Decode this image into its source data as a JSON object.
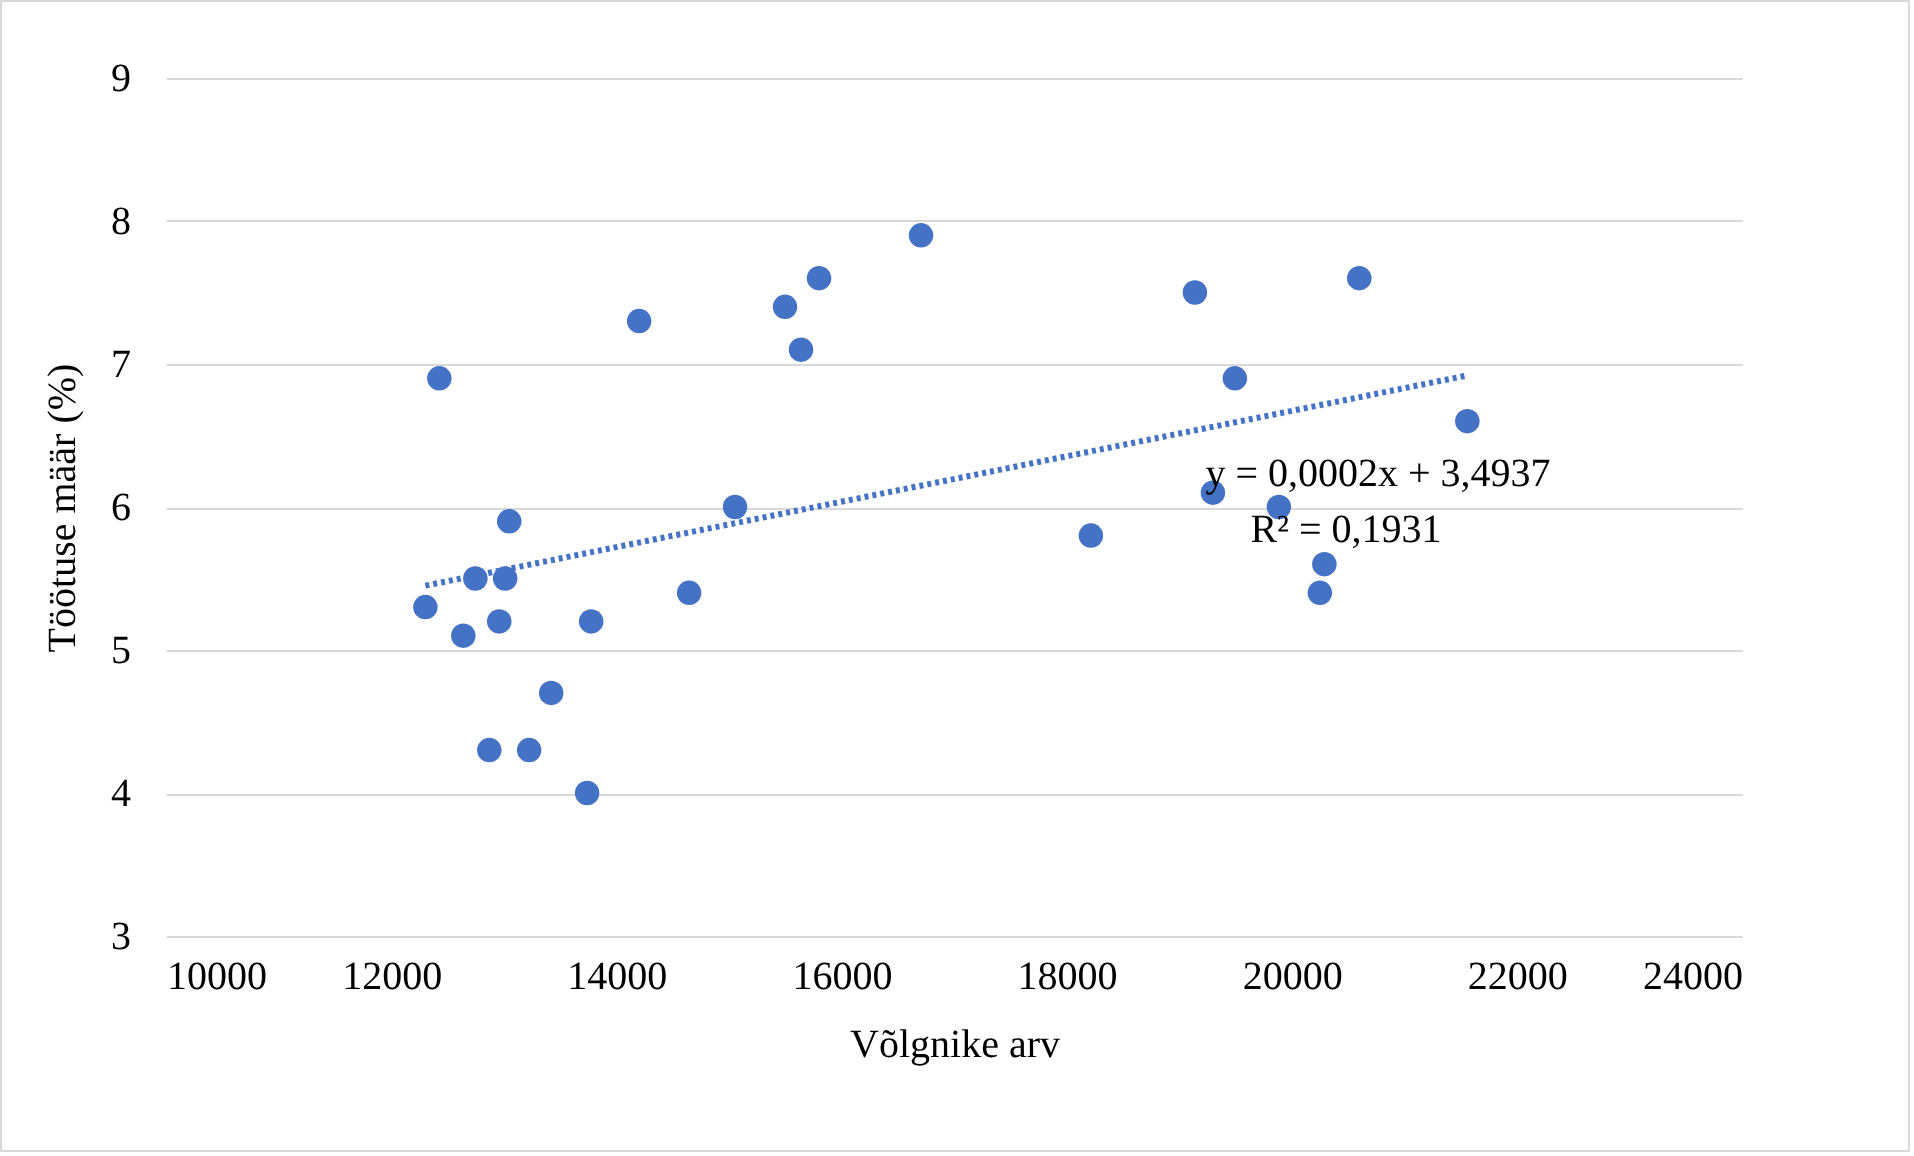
{
  "chart_data": {
    "type": "scatter",
    "xlabel": "Võlgnike arv",
    "ylabel": "Töötuse määr (%)",
    "xlim": [
      10000,
      24000
    ],
    "xticks": [
      10000,
      12000,
      14000,
      16000,
      18000,
      20000,
      22000,
      24000
    ],
    "ylim": [
      3,
      9
    ],
    "yticks": [
      3,
      4,
      5,
      6,
      7,
      8,
      9
    ],
    "grid": "y",
    "legend": false,
    "series": [
      {
        "type": "scatter",
        "marker": "circle",
        "color": "#4472c4",
        "x": [
          12304,
          12428,
          12641,
          12748,
          12872,
          12960,
          13013,
          13049,
          13226,
          13422,
          13741,
          13777,
          14203,
          14647,
          15055,
          15499,
          15641,
          15801,
          16707,
          18216,
          19140,
          19300,
          19495,
          19886,
          20250,
          20290,
          20600,
          21560
        ],
        "values": [
          5.3,
          6.9,
          5.1,
          5.5,
          4.3,
          5.2,
          5.5,
          5.9,
          4.3,
          4.7,
          4.0,
          5.2,
          7.3,
          5.4,
          6.0,
          7.4,
          7.1,
          7.6,
          7.9,
          5.8,
          7.5,
          6.1,
          6.9,
          6.0,
          5.4,
          5.6,
          7.6,
          6.6
        ]
      },
      {
        "type": "line",
        "color": "#4472c4",
        "line_style": "dotted",
        "x": [
          12304,
          21560
        ],
        "values": [
          5.45,
          6.92
        ]
      }
    ],
    "annotations": [
      "y = 0,0002x + 3,4937",
      "R² = 0,1931"
    ]
  }
}
